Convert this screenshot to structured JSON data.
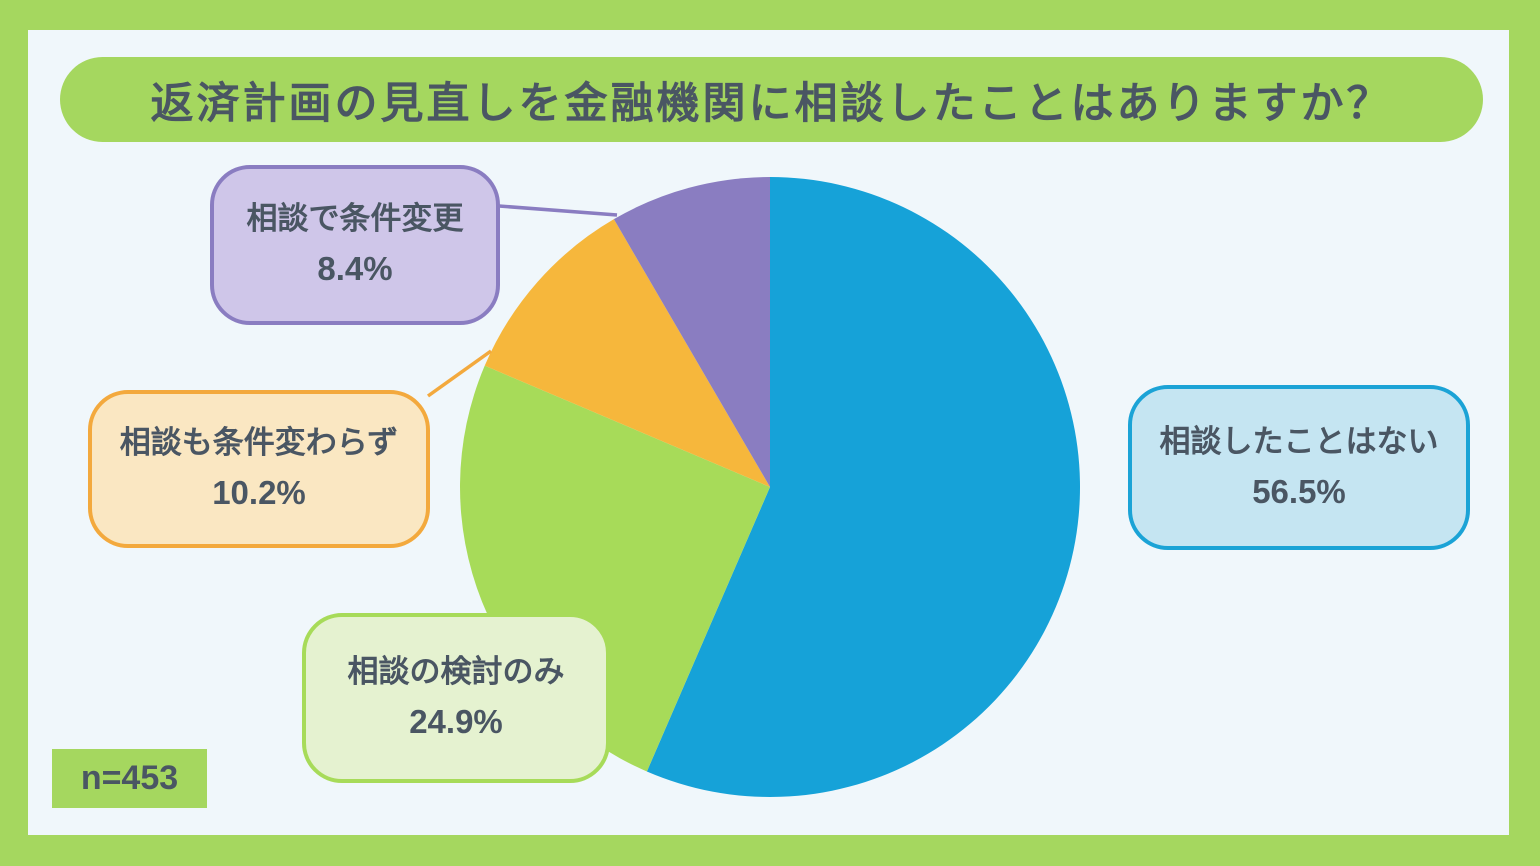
{
  "title": "返済計画の見直しを金融機関に相談したことはありますか？",
  "sample_size_label": "n=453",
  "chart_data": {
    "type": "pie",
    "title": "返済計画の見直しを金融機関に相談したことはありますか？",
    "start_angle_deg": 0,
    "direction": "clockwise",
    "sample_size": "n=453",
    "slices": [
      {
        "id": "none",
        "label": "相談したことはない",
        "value": 56.5,
        "color": "#16a2d8"
      },
      {
        "id": "considered",
        "label": "相談の検討のみ",
        "value": 24.9,
        "color": "#a7db59"
      },
      {
        "id": "no-change",
        "label": "相談も条件変わらず",
        "value": 10.2,
        "color": "#f6b73c"
      },
      {
        "id": "changed",
        "label": "相談で条件変更",
        "value": 8.4,
        "color": "#8a7dc1"
      }
    ]
  },
  "callouts": {
    "none": {
      "label": "相談したことはない",
      "pct": "56.5%",
      "fill": "#c5e5f2",
      "border": "#1ba3d6"
    },
    "considered": {
      "label": "相談の検討のみ",
      "pct": "24.9%",
      "fill": "#e5f2d0",
      "border": "#a7db59"
    },
    "no_change": {
      "label": "相談も条件変わらず",
      "pct": "10.2%",
      "fill": "#fae7c2",
      "border": "#f3a93d"
    },
    "changed": {
      "label": "相談で条件変更",
      "pct": "8.4%",
      "fill": "#cfc6e9",
      "border": "#8a7dc1"
    }
  },
  "colors": {
    "frame": "#a5d75f",
    "panel": "#f0f7fb",
    "text": "#4a5663"
  }
}
